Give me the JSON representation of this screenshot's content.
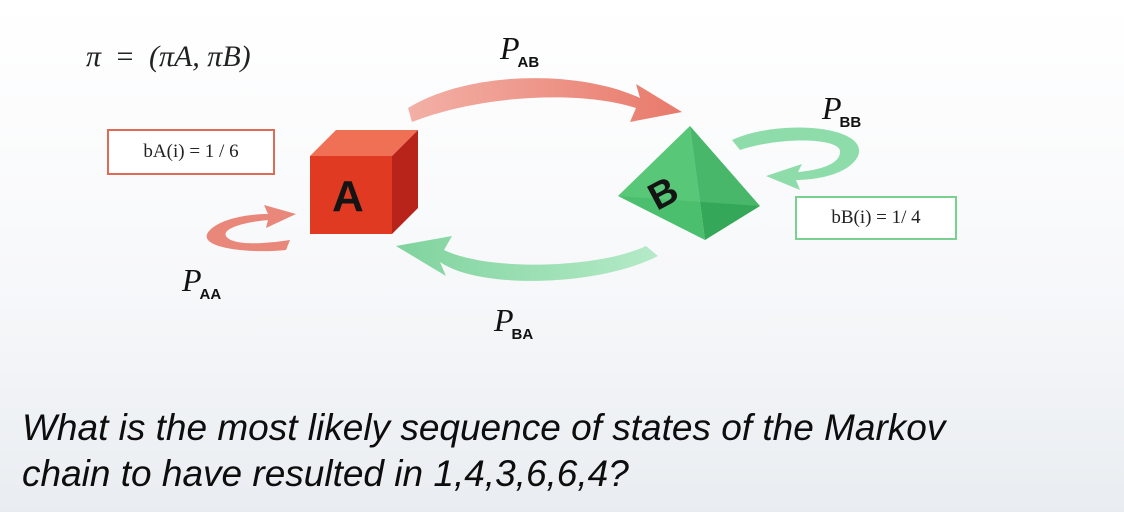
{
  "formula": {
    "pi_symbol": "π",
    "equals": "=",
    "rhs": "(πA, πB)"
  },
  "transitions": {
    "ab": {
      "P": "P",
      "sub": "AB"
    },
    "bb": {
      "P": "P",
      "sub": "BB"
    },
    "aa": {
      "P": "P",
      "sub": "AA"
    },
    "ba": {
      "P": "P",
      "sub": "BA"
    }
  },
  "states": {
    "a": {
      "label": "A",
      "color": "#e03a22"
    },
    "b": {
      "label": "B",
      "color": "#4cbf6e"
    }
  },
  "emissions": {
    "a": {
      "text": "b_A(i) = 1/6",
      "display": "bA(i) = 1 / 6",
      "border_color": "#e06a55"
    },
    "b": {
      "text": "b_B(i) = 1/4",
      "display": "bB(i) = 1/ 4",
      "border_color": "#79d08f"
    }
  },
  "question": {
    "line1": "What is the most likely sequence of states of the Markov",
    "line2": "chain to have resulted in 1,4,3,6,6,4?"
  },
  "colors": {
    "red_arrow": "#e8877a",
    "green_arrow": "#8fdcab"
  }
}
